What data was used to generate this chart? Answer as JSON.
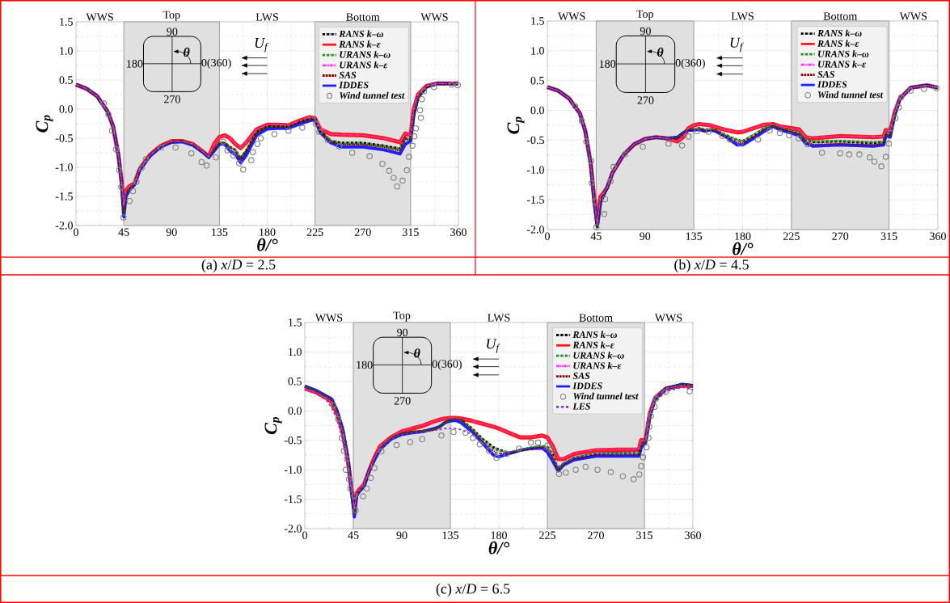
{
  "chart_data": [
    {
      "type": "line",
      "xlabel": "θ/°",
      "ylabel": "C$_{p}$",
      "xlim": [
        0,
        360
      ],
      "ylim": [
        -2,
        1.5
      ],
      "xticks": [
        0,
        45,
        90,
        135,
        180,
        225,
        270,
        315,
        360
      ],
      "yticks": [
        {
          "value": -2,
          "label": "-2.0"
        },
        -1.5,
        {
          "value": -1,
          "label": "-1.0"
        },
        -0.5,
        {
          "value": 0,
          "label": "0.0"
        },
        0.5,
        {
          "value": 1,
          "label": "1.0"
        },
        1.5
      ],
      "grid": true,
      "legend": "top right",
      "bands": [
        {
          "axis": "x",
          "from": 45,
          "to": 135,
          "label": "Top",
          "color": "#e0e0e0"
        },
        {
          "axis": "x",
          "from": 225,
          "to": 315,
          "label": "Bottom",
          "color": "#e0e0e0"
        }
      ],
      "annotations": [
        "90",
        "180",
        "0(360)",
        "270",
        "θ",
        "U$_{f}$",
        "(a) *x*/*D* = 2.5",
        "WWS",
        "LWS",
        "WWS"
      ],
      "x": [
        0,
        10,
        20,
        30,
        35,
        40,
        43,
        45,
        47,
        50,
        55,
        60,
        70,
        80,
        90,
        100,
        110,
        120,
        125,
        130,
        135,
        140,
        145,
        150,
        155,
        160,
        170,
        180,
        190,
        200,
        210,
        220,
        225,
        230,
        240,
        250,
        270,
        290,
        305,
        310,
        315,
        318,
        322,
        330,
        340,
        360
      ],
      "series": [
        {
          "name": "RANS k–ω",
          "color": "#000000",
          "line_style": "dashdot",
          "marker": "none",
          "values": [
            0.42,
            0.35,
            0.22,
            -0.05,
            -0.3,
            -0.8,
            -1.3,
            -1.8,
            -1.45,
            -1.38,
            -1.28,
            -1.03,
            -0.78,
            -0.63,
            -0.56,
            -0.55,
            -0.61,
            -0.74,
            -0.82,
            -0.7,
            -0.58,
            -0.58,
            -0.65,
            -0.7,
            -0.85,
            -0.72,
            -0.4,
            -0.3,
            -0.3,
            -0.3,
            -0.22,
            -0.17,
            -0.16,
            -0.38,
            -0.55,
            -0.58,
            -0.58,
            -0.63,
            -0.68,
            -0.5,
            -0.52,
            -0.1,
            0.2,
            0.38,
            0.44,
            0.44
          ]
        },
        {
          "name": "RANS k–ε",
          "color": "#ff1a1a",
          "line_style": "solid",
          "marker": "none",
          "values": [
            0.42,
            0.35,
            0.22,
            -0.05,
            -0.3,
            -0.8,
            -1.25,
            -1.65,
            -1.4,
            -1.33,
            -1.28,
            -1.03,
            -0.78,
            -0.63,
            -0.55,
            -0.55,
            -0.6,
            -0.74,
            -0.82,
            -0.6,
            -0.48,
            -0.45,
            -0.5,
            -0.6,
            -0.67,
            -0.58,
            -0.35,
            -0.27,
            -0.27,
            -0.28,
            -0.2,
            -0.14,
            -0.16,
            -0.35,
            -0.43,
            -0.44,
            -0.45,
            -0.5,
            -0.57,
            -0.42,
            -0.45,
            0.0,
            0.25,
            0.4,
            0.44,
            0.44
          ]
        },
        {
          "name": "URANS k–ω",
          "color": "#1a8a1a",
          "line_style": "dashdot",
          "marker": "none",
          "values": [
            0.42,
            0.35,
            0.22,
            -0.05,
            -0.3,
            -0.8,
            -1.3,
            -1.8,
            -1.45,
            -1.38,
            -1.28,
            -1.03,
            -0.78,
            -0.63,
            -0.56,
            -0.55,
            -0.61,
            -0.74,
            -0.82,
            -0.7,
            -0.58,
            -0.58,
            -0.65,
            -0.7,
            -0.83,
            -0.72,
            -0.4,
            -0.3,
            -0.3,
            -0.3,
            -0.22,
            -0.17,
            -0.16,
            -0.38,
            -0.55,
            -0.6,
            -0.6,
            -0.64,
            -0.7,
            -0.5,
            -0.52,
            -0.1,
            0.2,
            0.38,
            0.44,
            0.44
          ]
        },
        {
          "name": "URANS k–ε",
          "color": "#ff33ff",
          "line_style": "dashdotdot",
          "marker": "none",
          "values": [
            0.42,
            0.35,
            0.22,
            -0.05,
            -0.3,
            -0.8,
            -1.25,
            -1.65,
            -1.4,
            -1.33,
            -1.28,
            -1.03,
            -0.78,
            -0.63,
            -0.55,
            -0.55,
            -0.6,
            -0.74,
            -0.82,
            -0.6,
            -0.48,
            -0.45,
            -0.49,
            -0.6,
            -0.67,
            -0.58,
            -0.35,
            -0.27,
            -0.27,
            -0.28,
            -0.2,
            -0.14,
            -0.16,
            -0.33,
            -0.43,
            -0.44,
            -0.45,
            -0.5,
            -0.56,
            -0.42,
            -0.45,
            0.0,
            0.25,
            0.4,
            0.44,
            0.44
          ]
        },
        {
          "name": "SAS",
          "color": "#8b0000",
          "line_style": "dotted",
          "marker": "none",
          "values": [
            0.42,
            0.35,
            0.22,
            -0.05,
            -0.3,
            -0.8,
            -1.3,
            -1.8,
            -1.45,
            -1.38,
            -1.28,
            -1.03,
            -0.78,
            -0.63,
            -0.56,
            -0.55,
            -0.61,
            -0.74,
            -0.82,
            -0.7,
            -0.58,
            -0.58,
            -0.66,
            -0.72,
            -0.87,
            -0.74,
            -0.42,
            -0.31,
            -0.31,
            -0.31,
            -0.23,
            -0.18,
            -0.17,
            -0.39,
            -0.57,
            -0.61,
            -0.61,
            -0.66,
            -0.72,
            -0.52,
            -0.53,
            -0.1,
            0.2,
            0.38,
            0.44,
            0.44
          ]
        },
        {
          "name": "IDDES",
          "color": "#1f1fff",
          "line_style": "solid",
          "marker": "none",
          "values": [
            0.42,
            0.35,
            0.22,
            -0.05,
            -0.3,
            -0.8,
            -1.3,
            -1.85,
            -1.5,
            -1.4,
            -1.3,
            -1.05,
            -0.8,
            -0.65,
            -0.57,
            -0.56,
            -0.62,
            -0.75,
            -0.83,
            -0.72,
            -0.6,
            -0.6,
            -0.72,
            -0.78,
            -0.92,
            -0.8,
            -0.45,
            -0.34,
            -0.33,
            -0.33,
            -0.26,
            -0.2,
            -0.18,
            -0.4,
            -0.58,
            -0.65,
            -0.65,
            -0.7,
            -0.77,
            -0.6,
            -0.55,
            -0.1,
            0.2,
            0.38,
            0.44,
            0.44
          ]
        },
        {
          "name": "Wind tunnel test",
          "type": "scatter",
          "color": "#808080",
          "marker": "circle",
          "x": [
            26,
            30.5,
            34,
            37.6,
            40.6,
            42.6,
            44.7,
            50.5,
            53.6,
            56.9,
            61.7,
            65.7,
            80,
            93.7,
            108.6,
            118.3,
            123,
            131.7,
            138.6,
            142.6,
            148.2,
            153.6,
            157.4,
            165,
            166.5,
            170.8,
            174,
            186.8,
            200,
            213,
            225.6,
            229,
            237,
            247.7,
            260,
            276.4,
            288.4,
            294.8,
            299,
            302.3,
            307.4,
            311.4,
            313.5,
            316.8,
            318.5,
            320,
            324.6,
            323.9,
            325.6,
            327.7,
            337,
            353.6,
            359.4
          ],
          "values": [
            0.1,
            -0.09,
            -0.37,
            -0.69,
            -1.05,
            -1.34,
            -1.86,
            -1.58,
            -1.41,
            -1.25,
            -1.01,
            -0.86,
            -0.66,
            -0.66,
            -0.76,
            -0.91,
            -0.97,
            -0.83,
            -0.56,
            -0.71,
            -0.8,
            -0.93,
            -1.04,
            -0.88,
            -0.74,
            -0.6,
            -0.5,
            -0.43,
            -0.37,
            -0.32,
            -0.25,
            -0.39,
            -0.53,
            -0.64,
            -0.75,
            -0.81,
            -0.94,
            -1.06,
            -1.18,
            -1.33,
            -1.23,
            -1.05,
            -0.82,
            -0.63,
            -0.47,
            -0.33,
            -0.15,
            -0.02,
            0.17,
            0.31,
            0.38,
            0.42,
            0.41
          ]
        }
      ]
    },
    {
      "type": "line",
      "xlabel": "θ/°",
      "ylabel": "C$_{p}$",
      "xlim": [
        0,
        360
      ],
      "ylim": [
        -2,
        1.5
      ],
      "xticks": [
        0,
        45,
        90,
        135,
        180,
        225,
        270,
        315,
        360
      ],
      "yticks": [
        {
          "value": -2,
          "label": "-2.0"
        },
        -1.5,
        {
          "value": -1,
          "label": "-1.0"
        },
        -0.5,
        {
          "value": 0,
          "label": "0.0"
        },
        0.5,
        {
          "value": 1,
          "label": "1.0"
        },
        1.5
      ],
      "grid": true,
      "legend": "top right",
      "bands": [
        {
          "axis": "x",
          "from": 45,
          "to": 135,
          "label": "Top",
          "color": "#e0e0e0"
        },
        {
          "axis": "x",
          "from": 225,
          "to": 315,
          "label": "Bottom",
          "color": "#e0e0e0"
        }
      ],
      "annotations": [
        "90",
        "180",
        "0(360)",
        "270",
        "θ",
        "U$_{f}$",
        "(b) *x*/*D* = 4.5",
        "WWS",
        "LWS",
        "WWS"
      ],
      "x": [
        0,
        10,
        20,
        30,
        35,
        40,
        43,
        46,
        49,
        52,
        55,
        60,
        70,
        80,
        90,
        100,
        110,
        120,
        125,
        130,
        135,
        140,
        145,
        150,
        155,
        165,
        175,
        180,
        190,
        200,
        208,
        215,
        225,
        232,
        238,
        245,
        270,
        300,
        310,
        312,
        316,
        320,
        325,
        335,
        350,
        360
      ],
      "series": [
        {
          "name": "RANS k–ω",
          "color": "#000000",
          "line_style": "dashdot",
          "marker": "none",
          "values": [
            0.39,
            0.33,
            0.2,
            -0.05,
            -0.35,
            -0.9,
            -1.5,
            -1.95,
            -1.55,
            -1.42,
            -1.3,
            -1.05,
            -0.75,
            -0.57,
            -0.48,
            -0.45,
            -0.47,
            -0.47,
            -0.38,
            -0.32,
            -0.32,
            -0.3,
            -0.33,
            -0.32,
            -0.33,
            -0.42,
            -0.5,
            -0.52,
            -0.42,
            -0.3,
            -0.25,
            -0.3,
            -0.35,
            -0.38,
            -0.5,
            -0.53,
            -0.52,
            -0.55,
            -0.53,
            -0.38,
            -0.4,
            -0.08,
            0.2,
            0.38,
            0.42,
            0.38
          ]
        },
        {
          "name": "RANS k–ε",
          "color": "#ff1a1a",
          "line_style": "solid",
          "marker": "none",
          "values": [
            0.39,
            0.33,
            0.2,
            -0.05,
            -0.35,
            -0.9,
            -1.45,
            -1.9,
            -1.45,
            -1.38,
            -1.3,
            -1.05,
            -0.75,
            -0.57,
            -0.48,
            -0.45,
            -0.47,
            -0.52,
            -0.45,
            -0.3,
            -0.25,
            -0.23,
            -0.24,
            -0.25,
            -0.28,
            -0.33,
            -0.37,
            -0.36,
            -0.3,
            -0.24,
            -0.23,
            -0.27,
            -0.3,
            -0.32,
            -0.45,
            -0.47,
            -0.43,
            -0.45,
            -0.44,
            -0.33,
            -0.35,
            -0.05,
            0.2,
            0.38,
            0.42,
            0.38
          ]
        },
        {
          "name": "URANS k–ω",
          "color": "#1a8a1a",
          "line_style": "dashdot",
          "marker": "none",
          "values": [
            0.39,
            0.33,
            0.2,
            -0.05,
            -0.35,
            -0.9,
            -1.5,
            -1.95,
            -1.55,
            -1.42,
            -1.3,
            -1.05,
            -0.75,
            -0.57,
            -0.48,
            -0.45,
            -0.47,
            -0.47,
            -0.38,
            -0.32,
            -0.31,
            -0.29,
            -0.32,
            -0.31,
            -0.33,
            -0.41,
            -0.5,
            -0.51,
            -0.41,
            -0.29,
            -0.25,
            -0.3,
            -0.34,
            -0.37,
            -0.49,
            -0.52,
            -0.51,
            -0.53,
            -0.52,
            -0.37,
            -0.4,
            -0.08,
            0.2,
            0.38,
            0.42,
            0.38
          ]
        },
        {
          "name": "URANS k–ε",
          "color": "#ff33ff",
          "line_style": "dashdotdot",
          "marker": "none",
          "values": [
            0.39,
            0.33,
            0.2,
            -0.05,
            -0.35,
            -0.9,
            -1.45,
            -1.9,
            -1.45,
            -1.38,
            -1.3,
            -1.05,
            -0.75,
            -0.57,
            -0.48,
            -0.45,
            -0.47,
            -0.52,
            -0.45,
            -0.3,
            -0.25,
            -0.23,
            -0.24,
            -0.25,
            -0.28,
            -0.33,
            -0.36,
            -0.35,
            -0.3,
            -0.24,
            -0.23,
            -0.27,
            -0.3,
            -0.32,
            -0.45,
            -0.46,
            -0.43,
            -0.44,
            -0.44,
            -0.33,
            -0.35,
            -0.05,
            0.2,
            0.38,
            0.42,
            0.38
          ]
        },
        {
          "name": "SAS",
          "color": "#8b0000",
          "line_style": "dotted",
          "marker": "none",
          "values": [
            0.39,
            0.33,
            0.2,
            -0.05,
            -0.35,
            -0.9,
            -1.5,
            -1.95,
            -1.55,
            -1.42,
            -1.3,
            -1.05,
            -0.75,
            -0.57,
            -0.48,
            -0.45,
            -0.47,
            -0.47,
            -0.38,
            -0.32,
            -0.33,
            -0.31,
            -0.34,
            -0.33,
            -0.34,
            -0.44,
            -0.54,
            -0.55,
            -0.45,
            -0.32,
            -0.26,
            -0.31,
            -0.36,
            -0.4,
            -0.53,
            -0.57,
            -0.56,
            -0.58,
            -0.56,
            -0.4,
            -0.42,
            -0.09,
            0.2,
            0.38,
            0.42,
            0.38
          ]
        },
        {
          "name": "IDDES",
          "color": "#1f1fff",
          "line_style": "solid",
          "marker": "none",
          "values": [
            0.39,
            0.33,
            0.2,
            -0.05,
            -0.35,
            -0.9,
            -1.5,
            -1.95,
            -1.55,
            -1.42,
            -1.3,
            -1.05,
            -0.75,
            -0.57,
            -0.48,
            -0.45,
            -0.47,
            -0.45,
            -0.38,
            -0.33,
            -0.33,
            -0.32,
            -0.35,
            -0.33,
            -0.35,
            -0.45,
            -0.58,
            -0.58,
            -0.47,
            -0.35,
            -0.27,
            -0.33,
            -0.38,
            -0.42,
            -0.55,
            -0.6,
            -0.58,
            -0.6,
            -0.58,
            -0.42,
            -0.45,
            -0.1,
            0.2,
            0.38,
            0.42,
            0.38
          ]
        },
        {
          "name": "Wind tunnel test",
          "type": "scatter",
          "color": "#808080",
          "marker": "circle",
          "x": [
            25.7,
            31.7,
            35.9,
            40.3,
            40.8,
            43.9,
            45.2,
            52.4,
            53.2,
            58.2,
            61,
            71.4,
            88,
            111.7,
            124.1,
            130.2,
            137.7,
            148.7,
            161.4,
            168.3,
            178.2,
            194.2,
            205,
            214.3,
            222.9,
            231.7,
            239.7,
            253.2,
            269.8,
            278.3,
            287.7,
            297.1,
            301.5,
            307.9,
            312,
            314.8,
            316.7,
            320.8,
            324.1,
            326.3,
            334.9,
            347.3,
            358.6
          ],
          "values": [
            0.07,
            -0.18,
            -0.52,
            -0.85,
            -1.22,
            -1.53,
            -1.96,
            -1.74,
            -1.49,
            -1.19,
            -0.95,
            -0.74,
            -0.61,
            -0.56,
            -0.59,
            -0.44,
            -0.35,
            -0.36,
            -0.43,
            -0.49,
            -0.55,
            -0.49,
            -0.34,
            -0.38,
            -0.42,
            -0.47,
            -0.57,
            -0.71,
            -0.72,
            -0.74,
            -0.74,
            -0.79,
            -0.86,
            -0.94,
            -0.78,
            -0.56,
            -0.3,
            -0.13,
            0.05,
            0.22,
            0.33,
            0.36,
            0.37
          ]
        }
      ]
    },
    {
      "type": "line",
      "xlabel": "θ/°",
      "ylabel": "C$_{p}$",
      "xlim": [
        0,
        360
      ],
      "ylim": [
        -2,
        1.5
      ],
      "xticks": [
        0,
        45,
        90,
        135,
        180,
        225,
        270,
        315,
        360
      ],
      "yticks": [
        {
          "value": -2,
          "label": "-2.0"
        },
        -1.5,
        {
          "value": -1,
          "label": "-1.0"
        },
        -0.5,
        {
          "value": 0,
          "label": "0.0"
        },
        0.5,
        {
          "value": 1,
          "label": "1.0"
        },
        1.5
      ],
      "grid": true,
      "legend": "top right",
      "bands": [
        {
          "axis": "x",
          "from": 45,
          "to": 135,
          "label": "Top",
          "color": "#e0e0e0"
        },
        {
          "axis": "x",
          "from": 225,
          "to": 315,
          "label": "Bottom",
          "color": "#e0e0e0"
        }
      ],
      "annotations": [
        "90",
        "180",
        "0(360)",
        "270",
        "θ",
        "U$_{f}$",
        "(c) *x*/*D* = 6.5",
        "WWS",
        "LWS",
        "WWS"
      ],
      "x": [
        0,
        10,
        20,
        25,
        30,
        35,
        40,
        43,
        46,
        48,
        50,
        55,
        60,
        65,
        70,
        80,
        90,
        100,
        110,
        120,
        125,
        130,
        135,
        140,
        145,
        155,
        165,
        175,
        180,
        190,
        200,
        210,
        220,
        225,
        230,
        235,
        240,
        250,
        270,
        290,
        310,
        312,
        316,
        320,
        325,
        335,
        350,
        360
      ],
      "series": [
        {
          "name": "RANS k–ω",
          "color": "#000000",
          "line_style": "dashdot",
          "marker": "none",
          "values": [
            0.41,
            0.34,
            0.24,
            0.18,
            -0.02,
            -0.32,
            -0.82,
            -1.3,
            -1.75,
            -1.45,
            -1.37,
            -1.27,
            -1.0,
            -0.8,
            -0.63,
            -0.46,
            -0.39,
            -0.36,
            -0.34,
            -0.32,
            -0.28,
            -0.2,
            -0.15,
            -0.14,
            -0.15,
            -0.3,
            -0.48,
            -0.62,
            -0.66,
            -0.72,
            -0.67,
            -0.63,
            -0.6,
            -0.62,
            -0.75,
            -1.0,
            -0.9,
            -0.8,
            -0.73,
            -0.72,
            -0.73,
            -0.58,
            -0.52,
            -0.1,
            0.2,
            0.38,
            0.45,
            0.43
          ]
        },
        {
          "name": "RANS k–ε",
          "color": "#ff1a1a",
          "line_style": "solid",
          "marker": "none",
          "values": [
            0.38,
            0.32,
            0.22,
            0.15,
            -0.05,
            -0.35,
            -0.85,
            -1.3,
            -1.65,
            -1.4,
            -1.35,
            -1.25,
            -1.0,
            -0.78,
            -0.6,
            -0.45,
            -0.35,
            -0.3,
            -0.25,
            -0.18,
            -0.15,
            -0.13,
            -0.12,
            -0.12,
            -0.13,
            -0.17,
            -0.22,
            -0.27,
            -0.3,
            -0.38,
            -0.45,
            -0.45,
            -0.42,
            -0.45,
            -0.6,
            -0.82,
            -0.82,
            -0.73,
            -0.67,
            -0.66,
            -0.66,
            -0.5,
            -0.5,
            -0.05,
            0.22,
            0.38,
            0.43,
            0.42
          ]
        },
        {
          "name": "URANS k–ω",
          "color": "#1a8a1a",
          "line_style": "dashdot",
          "marker": "none",
          "values": [
            0.41,
            0.34,
            0.24,
            0.18,
            -0.02,
            -0.32,
            -0.82,
            -1.3,
            -1.75,
            -1.45,
            -1.37,
            -1.27,
            -1.0,
            -0.8,
            -0.63,
            -0.46,
            -0.39,
            -0.36,
            -0.34,
            -0.32,
            -0.28,
            -0.2,
            -0.15,
            -0.14,
            -0.16,
            -0.31,
            -0.5,
            -0.65,
            -0.68,
            -0.7,
            -0.66,
            -0.62,
            -0.6,
            -0.63,
            -0.78,
            -1.0,
            -0.9,
            -0.79,
            -0.72,
            -0.72,
            -0.72,
            -0.57,
            -0.52,
            -0.1,
            0.2,
            0.38,
            0.45,
            0.43
          ]
        },
        {
          "name": "URANS k–ε",
          "color": "#ff33ff",
          "line_style": "dashdotdot",
          "marker": "none",
          "values": [
            0.38,
            0.32,
            0.22,
            0.15,
            -0.05,
            -0.35,
            -0.85,
            -1.3,
            -1.65,
            -1.4,
            -1.35,
            -1.25,
            -1.0,
            -0.78,
            -0.6,
            -0.44,
            -0.34,
            -0.29,
            -0.24,
            -0.18,
            -0.15,
            -0.13,
            -0.12,
            -0.12,
            -0.13,
            -0.17,
            -0.22,
            -0.27,
            -0.3,
            -0.38,
            -0.45,
            -0.45,
            -0.42,
            -0.45,
            -0.6,
            -0.8,
            -0.81,
            -0.72,
            -0.66,
            -0.65,
            -0.65,
            -0.5,
            -0.5,
            -0.05,
            0.22,
            0.38,
            0.43,
            0.42
          ]
        },
        {
          "name": "SAS",
          "color": "#8b0000",
          "line_style": "dotted",
          "marker": "none",
          "values": [
            0.41,
            0.34,
            0.24,
            0.18,
            -0.02,
            -0.32,
            -0.82,
            -1.3,
            -1.75,
            -1.45,
            -1.37,
            -1.27,
            -1.0,
            -0.8,
            -0.63,
            -0.46,
            -0.39,
            -0.36,
            -0.34,
            -0.32,
            -0.28,
            -0.2,
            -0.15,
            -0.14,
            -0.15,
            -0.32,
            -0.52,
            -0.68,
            -0.72,
            -0.72,
            -0.67,
            -0.64,
            -0.62,
            -0.65,
            -0.8,
            -1.0,
            -0.92,
            -0.82,
            -0.75,
            -0.75,
            -0.75,
            -0.6,
            -0.54,
            -0.1,
            0.2,
            0.38,
            0.45,
            0.43
          ]
        },
        {
          "name": "IDDES",
          "color": "#1f1fff",
          "line_style": "solid",
          "marker": "none",
          "values": [
            0.42,
            0.35,
            0.25,
            0.2,
            0.0,
            -0.3,
            -0.8,
            -1.3,
            -1.8,
            -1.45,
            -1.38,
            -1.28,
            -1.0,
            -0.82,
            -0.65,
            -0.48,
            -0.4,
            -0.37,
            -0.35,
            -0.3,
            -0.27,
            -0.2,
            -0.17,
            -0.16,
            -0.2,
            -0.35,
            -0.55,
            -0.75,
            -0.78,
            -0.72,
            -0.67,
            -0.64,
            -0.63,
            -0.7,
            -0.85,
            -1.02,
            -0.92,
            -0.83,
            -0.77,
            -0.77,
            -0.77,
            -0.62,
            -0.55,
            -0.1,
            0.2,
            0.38,
            0.45,
            0.43
          ]
        },
        {
          "name": "Wind tunnel test",
          "type": "scatter",
          "color": "#808080",
          "marker": "circle",
          "x": [
            26.5,
            31,
            34.2,
            36.2,
            38,
            39.2,
            41,
            42.2,
            46,
            47.2,
            54,
            57.5,
            61.2,
            64.5,
            71,
            85.2,
            97.7,
            108.9,
            126.7,
            137.9,
            149.1,
            155.9,
            162.4,
            170.9,
            177.9,
            187.1,
            198.6,
            209.8,
            216.3,
            225.1,
            228.8,
            235.8,
            242.1,
            251.3,
            260.5,
            271.5,
            283.8,
            295,
            305,
            310.3,
            312,
            313.8,
            317,
            318.8,
            319.6,
            321,
            324.5,
            325.8,
            334.5,
            357
          ],
          "values": [
            0.09,
            -0.14,
            -0.46,
            -0.68,
            -1.0,
            -0.82,
            -1.16,
            -1.32,
            -1.44,
            -1.69,
            -1.45,
            -1.32,
            -1.14,
            -0.97,
            -0.69,
            -0.58,
            -0.53,
            -0.48,
            -0.42,
            -0.36,
            -0.37,
            -0.46,
            -0.57,
            -0.68,
            -0.8,
            -0.73,
            -0.64,
            -0.54,
            -0.54,
            -0.59,
            -0.66,
            -1.07,
            -1.05,
            -1.0,
            -0.95,
            -1.0,
            -1.04,
            -1.11,
            -1.16,
            -1.08,
            -0.94,
            -0.79,
            -0.62,
            -0.46,
            -0.27,
            -0.09,
            0.07,
            0.21,
            0.32,
            0.33
          ]
        },
        {
          "name": "LES",
          "color": "#8a2be2",
          "line_style": "dashed",
          "marker": "none",
          "values": [
            0.37,
            0.3,
            0.18,
            0.05,
            -0.15,
            -0.5,
            -0.9,
            -1.3,
            -1.7,
            -1.5,
            -1.4,
            -1.2,
            -1.0,
            -0.8,
            -0.65,
            -0.48,
            -0.4,
            -0.37,
            -0.35,
            -0.33,
            -0.32,
            -0.3,
            -0.3,
            -0.3,
            -0.32,
            -0.4,
            -0.55,
            -0.7,
            -0.73,
            -0.7,
            -0.67,
            -0.65,
            -0.65,
            -0.67,
            -0.8,
            -0.95,
            -0.88,
            -0.8,
            -0.72,
            -0.7,
            -0.7,
            -0.6,
            -0.55,
            -0.1,
            0.15,
            0.33,
            0.4,
            0.36
          ]
        }
      ]
    }
  ]
}
